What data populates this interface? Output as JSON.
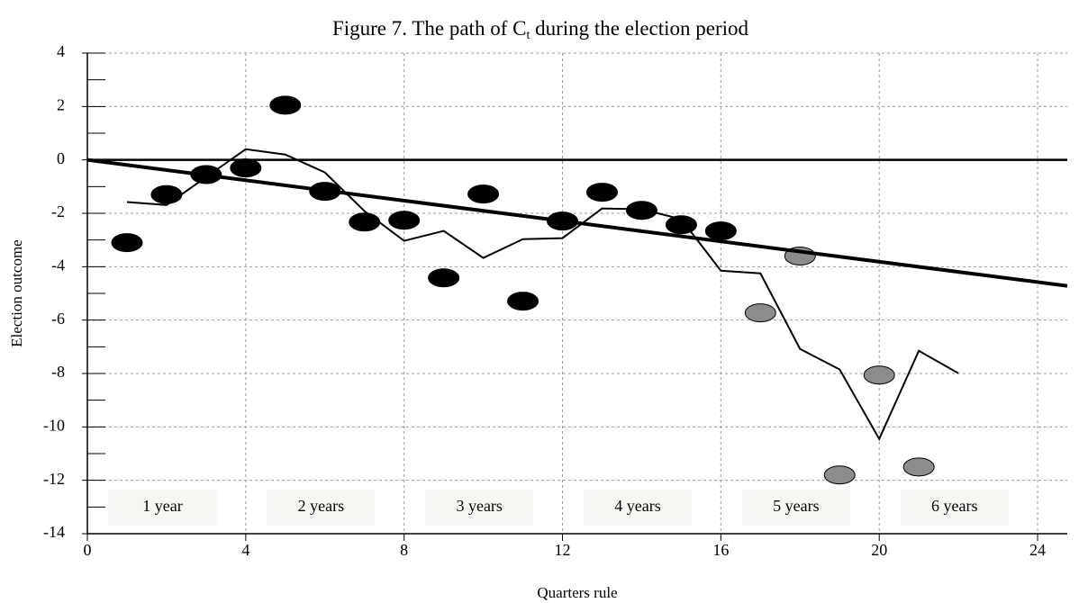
{
  "chart_data": {
    "type": "line",
    "title": [
      "Figure 7. The path of C",
      "t",
      " during the election period"
    ],
    "xlabel": "Quarters rule",
    "ylabel": "Election outcome",
    "xlim": [
      0,
      24.75
    ],
    "ylim": [
      -14,
      4
    ],
    "xticks": [
      0,
      4,
      8,
      12,
      16,
      20,
      24
    ],
    "yticks": [
      -14,
      -12,
      -10,
      -8,
      -6,
      -4,
      -2,
      0,
      2,
      4
    ],
    "grid": true,
    "grid_style": "dashed",
    "period_labels": [
      "1 year",
      "2 years",
      "3 years",
      "4 years",
      "5 years",
      "6 years"
    ],
    "series": [
      {
        "style": "markers",
        "color": "#000000",
        "x": [
          1,
          2,
          3,
          4,
          5,
          6,
          7,
          8,
          9,
          10,
          11,
          12,
          13,
          14,
          15,
          16
        ],
        "values": [
          -3.1,
          -1.3,
          -0.55,
          -0.3,
          2.05,
          -1.18,
          -2.33,
          -2.26,
          -4.42,
          -1.28,
          -5.29,
          -2.29,
          -1.21,
          -1.89,
          -2.43,
          -2.66
        ]
      },
      {
        "style": "markers",
        "color": "#8c8c8c",
        "x": [
          17,
          18,
          19,
          20,
          21
        ],
        "values": [
          -5.73,
          -3.6,
          -11.8,
          -8.06,
          -11.5
        ]
      },
      {
        "style": "line",
        "color": "#000000",
        "width": 2,
        "x": [
          1,
          2,
          3,
          4,
          5,
          6,
          7,
          8,
          9,
          10,
          11,
          12,
          13,
          14,
          15,
          16,
          17,
          18,
          19,
          20,
          21,
          22
        ],
        "values": [
          -1.58,
          -1.69,
          -0.64,
          0.4,
          0.2,
          -0.47,
          -1.92,
          -3.03,
          -2.66,
          -3.67,
          -2.97,
          -2.93,
          -1.82,
          -1.85,
          -2.22,
          -4.15,
          -4.25,
          -7.08,
          -7.85,
          -10.45,
          -7.15,
          -7.99
        ]
      },
      {
        "style": "line",
        "color": "#000000",
        "width": 4,
        "x": [
          0,
          24.75
        ],
        "values": [
          0,
          -4.72
        ]
      }
    ]
  }
}
